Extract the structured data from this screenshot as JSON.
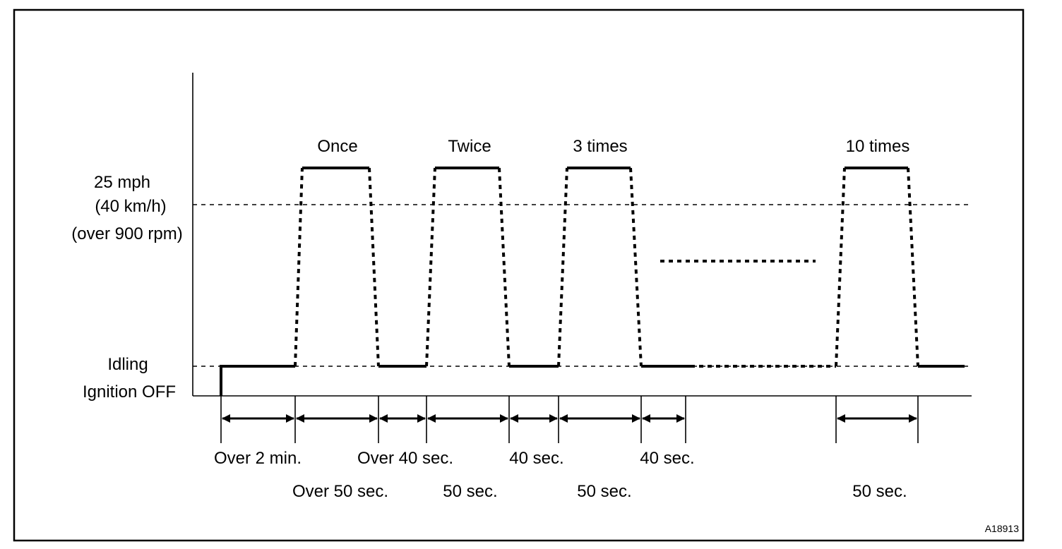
{
  "y_labels": {
    "speed": "25 mph",
    "speed_metric": "(40 km/h)",
    "rpm": "(over 900 rpm)",
    "idling": "Idling",
    "ignition_off": "Ignition OFF"
  },
  "cycle_labels": [
    "Once",
    "Twice",
    "3 times",
    "10 times"
  ],
  "interval_labels_row1": [
    "Over 2 min.",
    "Over 40 sec.",
    "40 sec.",
    "40 sec."
  ],
  "interval_labels_row2": [
    "Over 50 sec.",
    "50 sec.",
    "50 sec.",
    "50 sec."
  ],
  "figure_id": "A18913"
}
